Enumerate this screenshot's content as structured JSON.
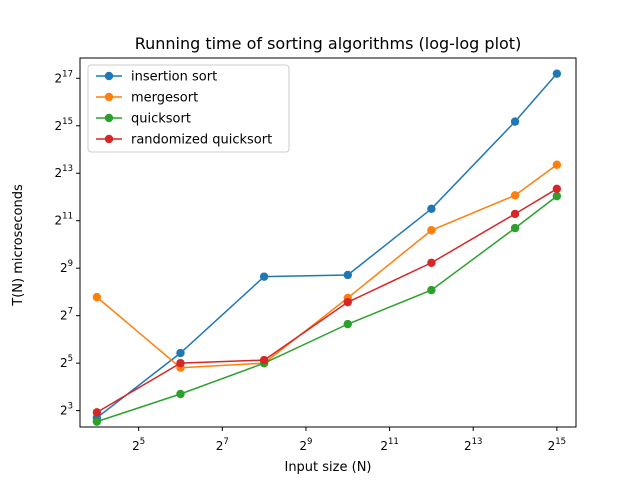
{
  "chart_data": {
    "type": "line",
    "title": "Running time of sorting algorithms (log-log plot)",
    "xlabel": "Input size (N)",
    "ylabel": "T(N)  microseconds",
    "xscale": "log2",
    "yscale": "log2",
    "xlim": [
      12.1,
      45000
    ],
    "ylim": [
      4.96,
      237000
    ],
    "x_tick_labels": [
      {
        "base": "2",
        "exp": "5",
        "value": 32
      },
      {
        "base": "2",
        "exp": "7",
        "value": 128
      },
      {
        "base": "2",
        "exp": "9",
        "value": 512
      },
      {
        "base": "2",
        "exp": "11",
        "value": 2048
      },
      {
        "base": "2",
        "exp": "13",
        "value": 8192
      },
      {
        "base": "2",
        "exp": "15",
        "value": 32768
      }
    ],
    "y_tick_labels": [
      {
        "base": "2",
        "exp": "3",
        "value": 8
      },
      {
        "base": "2",
        "exp": "5",
        "value": 32
      },
      {
        "base": "2",
        "exp": "7",
        "value": 128
      },
      {
        "base": "2",
        "exp": "9",
        "value": 512
      },
      {
        "base": "2",
        "exp": "11",
        "value": 2048
      },
      {
        "base": "2",
        "exp": "13",
        "value": 8192
      },
      {
        "base": "2",
        "exp": "15",
        "value": 32768
      },
      {
        "base": "2",
        "exp": "17",
        "value": 131072
      }
    ],
    "x": [
      16,
      64,
      256,
      1024,
      4096,
      16384,
      32768
    ],
    "series": [
      {
        "name": "insertion sort",
        "color": "#1f77b4",
        "values": [
          6.5,
          43,
          400,
          420,
          2900,
          37000,
          150000
        ]
      },
      {
        "name": "mergesort",
        "color": "#ff7f0e",
        "values": [
          220,
          28,
          32,
          215,
          1550,
          4300,
          10500
        ]
      },
      {
        "name": "quicksort",
        "color": "#2ca02c",
        "values": [
          5.8,
          13,
          32,
          100,
          270,
          1650,
          4200
        ]
      },
      {
        "name": "randomized quicksort",
        "color": "#d62728",
        "values": [
          7.6,
          32,
          35,
          190,
          600,
          2500,
          5200
        ]
      }
    ],
    "legend_position": "top-left",
    "grid": false,
    "marker": "circle"
  }
}
